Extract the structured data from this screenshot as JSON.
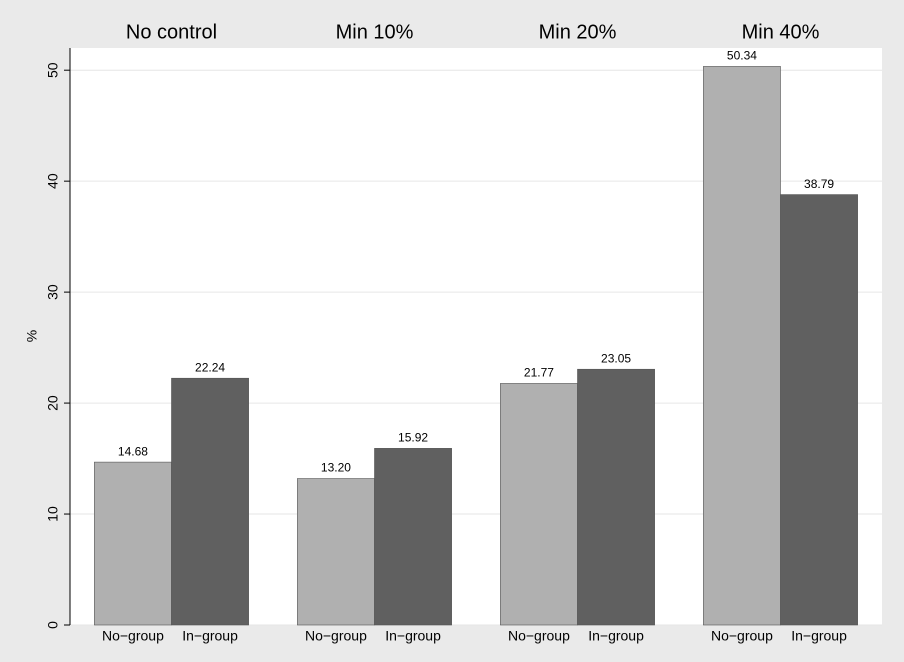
{
  "chart_data": {
    "type": "bar",
    "y_label": "%",
    "ylim": [
      0,
      52
    ],
    "yticks": [
      0,
      10,
      20,
      30,
      40,
      50
    ],
    "grid": true,
    "colors": [
      "#b0b0b0",
      "#606060"
    ],
    "panels": [
      {
        "title": "No control",
        "categories": [
          "No−group",
          "In−group"
        ],
        "values": [
          14.68,
          22.24
        ],
        "value_labels": [
          "14.68",
          "22.24"
        ]
      },
      {
        "title": "Min 10%",
        "categories": [
          "No−group",
          "In−group"
        ],
        "values": [
          13.2,
          15.92
        ],
        "value_labels": [
          "13.20",
          "15.92"
        ]
      },
      {
        "title": "Min 20%",
        "categories": [
          "No−group",
          "In−group"
        ],
        "values": [
          21.77,
          23.05
        ],
        "value_labels": [
          "21.77",
          "23.05"
        ]
      },
      {
        "title": "Min 40%",
        "categories": [
          "No−group",
          "In−group"
        ],
        "values": [
          50.34,
          38.79
        ],
        "value_labels": [
          "50.34",
          "38.79"
        ]
      }
    ]
  }
}
